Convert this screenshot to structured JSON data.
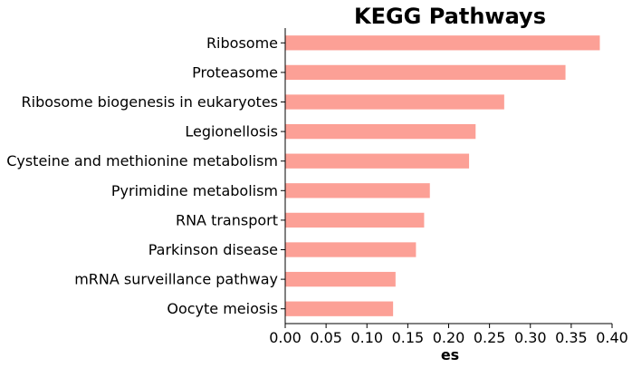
{
  "chart_data": {
    "type": "bar",
    "orientation": "horizontal",
    "title": "KEGG Pathways",
    "xlabel": "es",
    "ylabel": "",
    "categories": [
      "Ribosome",
      "Proteasome",
      "Ribosome biogenesis in eukaryotes",
      "Legionellosis",
      "Cysteine and methionine metabolism",
      "Pyrimidine metabolism",
      "RNA transport",
      "Parkinson disease",
      "mRNA surveillance pathway",
      "Oocyte meiosis"
    ],
    "values": [
      0.385,
      0.343,
      0.268,
      0.233,
      0.225,
      0.177,
      0.17,
      0.16,
      0.135,
      0.132
    ],
    "xlim": [
      0.0,
      0.4
    ],
    "xticks": [
      "0.00",
      "0.05",
      "0.10",
      "0.15",
      "0.20",
      "0.25",
      "0.30",
      "0.35",
      "0.40"
    ],
    "bar_color": "#fca096",
    "grid": false,
    "legend": "none"
  }
}
